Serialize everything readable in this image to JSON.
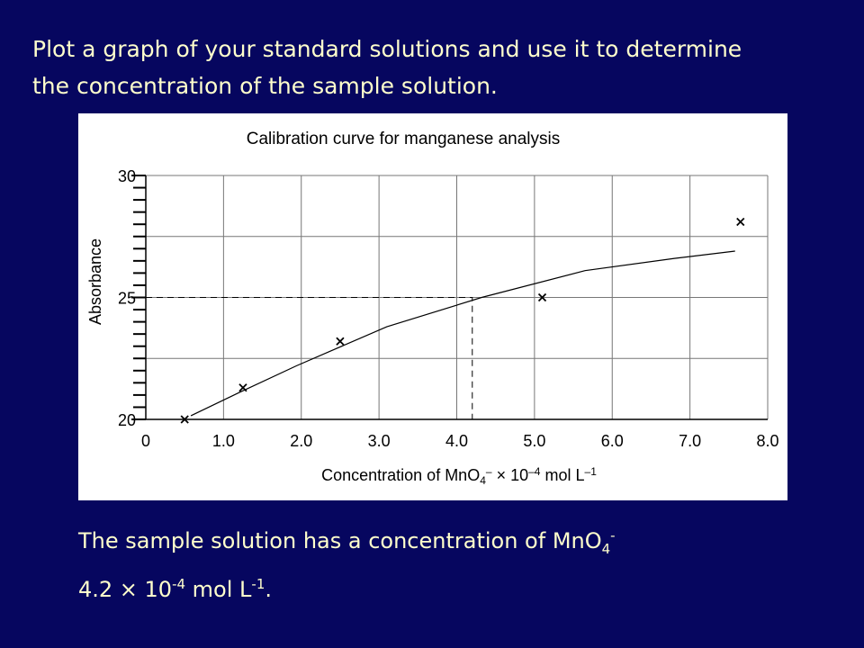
{
  "heading": "Plot a graph of your standard solutions and use it to determine the concentration of the sample solution.",
  "answer": {
    "line1": [
      {
        "text": "The sample solution has a concentration of MnO"
      },
      {
        "text": "4",
        "sub": true
      },
      {
        "text": "-",
        "sup": true
      }
    ],
    "line2": [
      {
        "text": "4.2 × 10"
      },
      {
        "text": "-4",
        "sup": true
      },
      {
        "text": " mol L"
      },
      {
        "text": "-1",
        "sup": true
      },
      {
        "text": "."
      }
    ]
  },
  "chart_data": {
    "type": "scatter",
    "title": "Calibration curve for manganese analysis",
    "ylabel": "Absorbance",
    "xlabel": [
      {
        "text": "Concentration of MnO"
      },
      {
        "text": "4",
        "sub": true
      },
      {
        "text": "–",
        "sup": true
      },
      {
        "text": " × 10"
      },
      {
        "text": "–4",
        "sup": true
      },
      {
        "text": " mol L"
      },
      {
        "text": "–1",
        "sup": true
      }
    ],
    "xlim": [
      0,
      8
    ],
    "ylim": [
      20,
      30
    ],
    "xticks": [
      0,
      {
        "value": 1,
        "label": "1.0"
      },
      {
        "value": 2,
        "label": "2.0"
      },
      {
        "value": 3,
        "label": "3.0"
      },
      {
        "value": 4,
        "label": "4.0"
      },
      {
        "value": 5,
        "label": "5.0"
      },
      {
        "value": 6,
        "label": "6.0"
      },
      {
        "value": 7,
        "label": "7.0"
      },
      {
        "value": 8,
        "label": "8.0"
      }
    ],
    "yticks": [
      20,
      25,
      30
    ],
    "yminorticks": [
      20.5,
      21,
      21.5,
      22,
      22.5,
      23,
      23.5,
      24,
      24.5,
      25.5,
      26,
      26.5,
      27,
      27.5,
      28,
      28.5,
      29,
      29.5
    ],
    "ygridlines": [
      20,
      22.5,
      25,
      27.5,
      30
    ],
    "grid": true,
    "color": "#000000",
    "points": {
      "x": [
        0.5,
        1.25,
        2.5,
        5.1,
        7.65
      ],
      "y": [
        20.0,
        21.3,
        23.2,
        25.0,
        28.1
      ]
    },
    "curve": {
      "x": [
        0.58,
        1.2,
        1.94,
        3.1,
        4.32,
        5.65,
        6.8,
        7.58
      ],
      "y": [
        20.15,
        21.1,
        22.2,
        23.8,
        25.0,
        26.1,
        26.6,
        26.9
      ]
    },
    "reading": {
      "x": 4.2,
      "y": 25
    }
  }
}
